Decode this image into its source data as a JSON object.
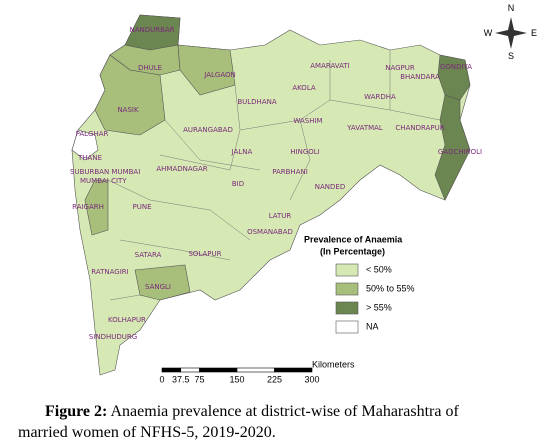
{
  "map": {
    "compass": {
      "north": "N",
      "east": "E",
      "south": "S",
      "west": "W"
    },
    "districts": [
      "NANDURBAR",
      "DHULE",
      "JALGAON",
      "AMARAVATI",
      "NAGPUR",
      "BHANDARA",
      "GONDIYA",
      "AKOLA",
      "WARDHA",
      "BULDHANA",
      "WASHIM",
      "NASIK",
      "AURANGABAD",
      "YAVATMAL",
      "CHANDRAPUR",
      "PALGHAR",
      "HINGOLI",
      "JALNA",
      "GADCHIROLI",
      "THANE",
      "AHMADNAGAR",
      "PARBHANI",
      "SUBURBAN MUMBAI",
      "MUMBAI CITY",
      "BID",
      "NANDED",
      "RAIGARH",
      "PUNE",
      "LATUR",
      "OSMANABAD",
      "SATARA",
      "SOLAPUR",
      "RATNAGIRI",
      "SANGLI",
      "KOLHAPUR",
      "SINDHUDURG"
    ],
    "legend": {
      "title": "Prevalence of Anaemia",
      "subtitle": "(In Percentage)",
      "items": [
        {
          "label": "< 50%",
          "color": "#d6e9b4"
        },
        {
          "label": "50% to 55%",
          "color": "#a8bf7b"
        },
        {
          "label": "> 55%",
          "color": "#6b8650"
        },
        {
          "label": "NA",
          "color": "#ffffff"
        }
      ]
    },
    "scale": {
      "unit": "Kilometers",
      "ticks": [
        0,
        37.5,
        75,
        150,
        225,
        300
      ]
    }
  },
  "caption": {
    "label": "Figure 2:",
    "text": "Anaemia prevalence at district-wise of Maharashtra of married women of NFHS-5, 2019-2020."
  }
}
